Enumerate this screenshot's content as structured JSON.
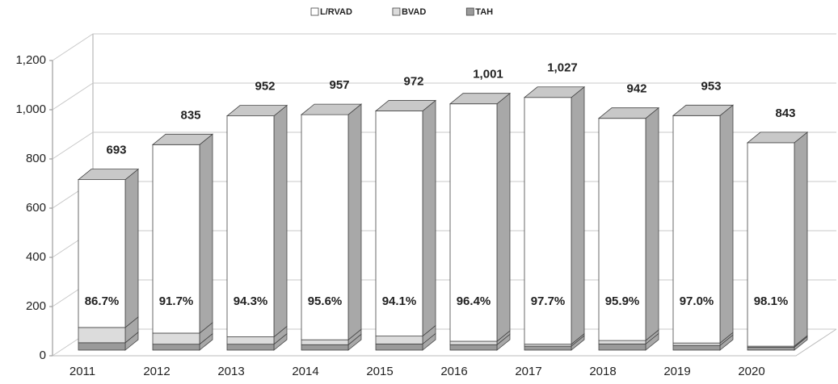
{
  "chart_data": {
    "type": "bar3d_stacked",
    "categories": [
      "2011",
      "2012",
      "2013",
      "2014",
      "2015",
      "2016",
      "2017",
      "2018",
      "2019",
      "2020"
    ],
    "series": [
      {
        "name": "TAH",
        "color": "#9a9a9a",
        "values": [
          30,
          24,
          24,
          22,
          25,
          22,
          16,
          25,
          19,
          12
        ]
      },
      {
        "name": "BVAD",
        "color": "#dcdcdc",
        "values": [
          62,
          45,
          30,
          20,
          32,
          14,
          8,
          14,
          10,
          4
        ]
      },
      {
        "name": "L/RVAD",
        "color": "#ffffff",
        "values": [
          601,
          766,
          898,
          915,
          915,
          965,
          1003,
          903,
          924,
          827
        ],
        "value_labels": [
          "86.7%",
          "91.7%",
          "94.3%",
          "95.6%",
          "94.1%",
          "96.4%",
          "97.7%",
          "95.9%",
          "97.0%",
          "98.1%"
        ]
      }
    ],
    "legend_order": [
      2,
      1,
      0
    ],
    "total_labels": [
      "693",
      "835",
      "952",
      "957",
      "972",
      "1,001",
      "1,027",
      "942",
      "953",
      "843"
    ],
    "ylim": [
      0,
      1200
    ],
    "yticks": [
      0,
      200,
      400,
      600,
      800,
      {
        "value": 1000,
        "label": "1,000"
      },
      {
        "value": 1200,
        "label": "1,200"
      }
    ],
    "grid": true
  }
}
